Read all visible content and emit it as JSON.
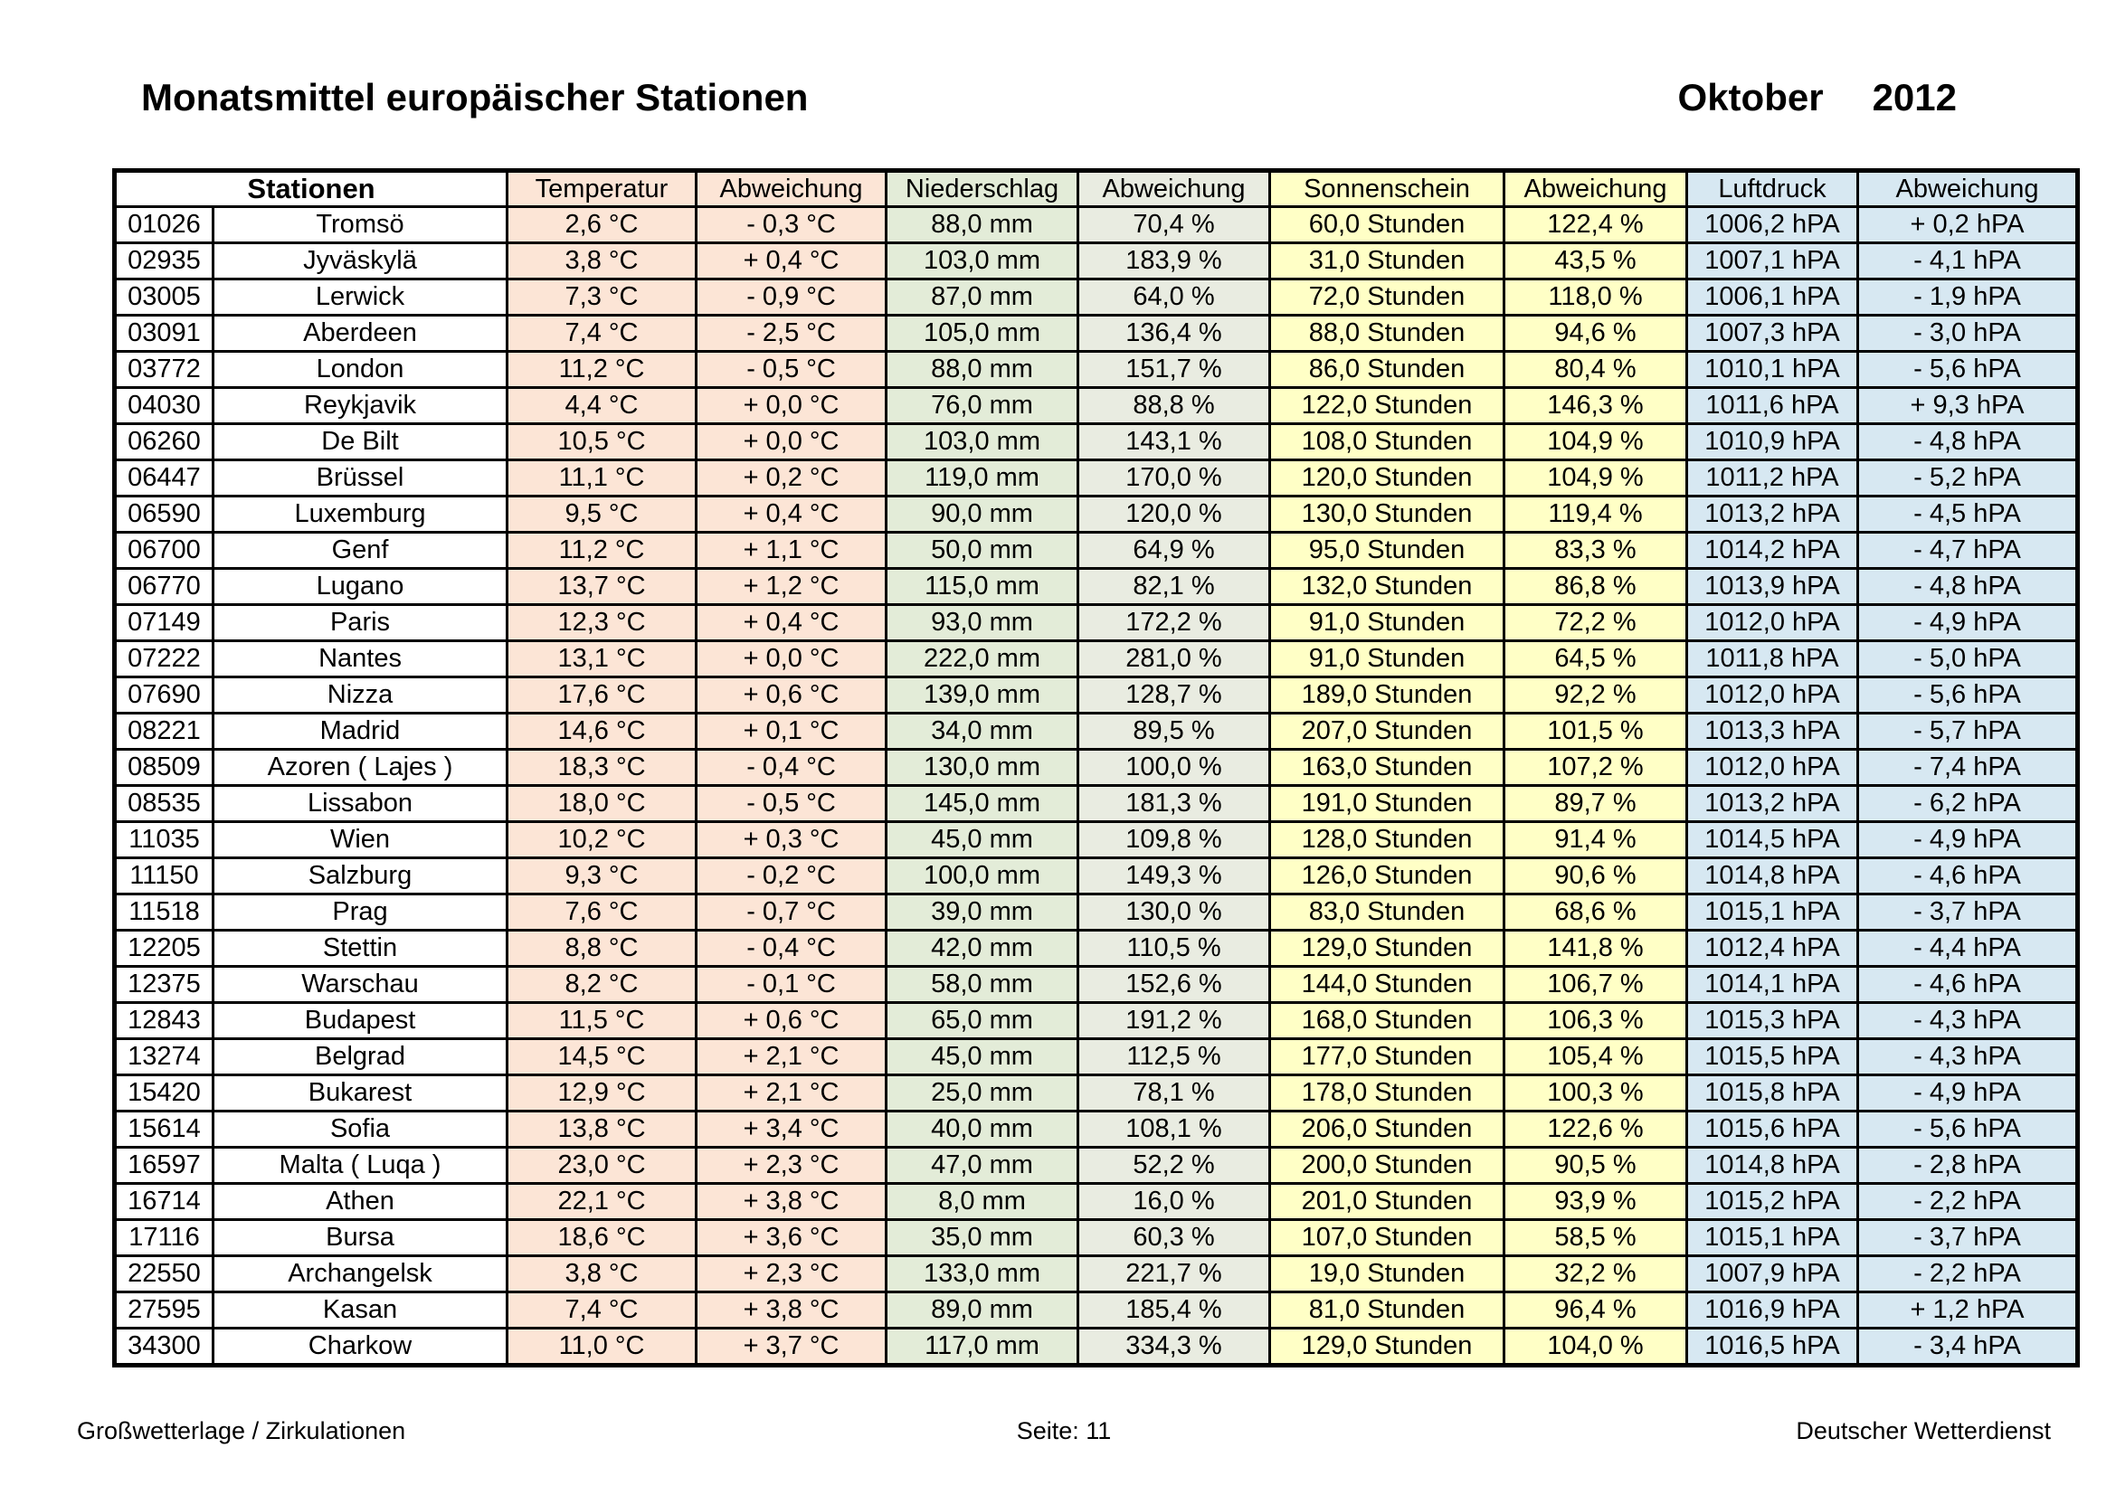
{
  "page": {
    "title": "Monatsmittel europäischer Stationen",
    "month": "Oktober",
    "year": "2012",
    "footer_left": "Großwetterlage / Zirkulationen",
    "footer_center": "Seite: 11",
    "footer_right": "Deutscher Wetterdienst"
  },
  "colors": {
    "temperature": "#fce5d6",
    "precipitation": "#e3ecd8",
    "precipitation_dev": "#e9ece1",
    "sunshine": "#ffffc6",
    "pressure": "#d7e8f2"
  },
  "table": {
    "header": {
      "stationen": "Stationen",
      "columns": [
        "Temperatur",
        "Abweichung",
        "Niederschlag",
        "Abweichung",
        "Sonnenschein",
        "Abweichung",
        "Luftdruck",
        "Abweichung"
      ]
    },
    "rows": [
      {
        "id": "01026",
        "name": "Tromsö",
        "temp": "2,6 °C",
        "temp_abw": "- 0,3 °C",
        "nied": "88,0 mm",
        "nied_abw": "70,4 %",
        "sonne": "60,0 Stunden",
        "sonne_abw": "122,4 %",
        "druck": "1006,2 hPA",
        "druck_abw": "+ 0,2 hPA"
      },
      {
        "id": "02935",
        "name": "Jyväskylä",
        "temp": "3,8 °C",
        "temp_abw": "+ 0,4 °C",
        "nied": "103,0 mm",
        "nied_abw": "183,9 %",
        "sonne": "31,0 Stunden",
        "sonne_abw": "43,5 %",
        "druck": "1007,1 hPA",
        "druck_abw": "- 4,1 hPA"
      },
      {
        "id": "03005",
        "name": "Lerwick",
        "temp": "7,3 °C",
        "temp_abw": "- 0,9 °C",
        "nied": "87,0 mm",
        "nied_abw": "64,0 %",
        "sonne": "72,0 Stunden",
        "sonne_abw": "118,0 %",
        "druck": "1006,1 hPA",
        "druck_abw": "- 1,9 hPA"
      },
      {
        "id": "03091",
        "name": "Aberdeen",
        "temp": "7,4 °C",
        "temp_abw": "- 2,5 °C",
        "nied": "105,0 mm",
        "nied_abw": "136,4 %",
        "sonne": "88,0 Stunden",
        "sonne_abw": "94,6 %",
        "druck": "1007,3 hPA",
        "druck_abw": "- 3,0 hPA"
      },
      {
        "id": "03772",
        "name": "London",
        "temp": "11,2 °C",
        "temp_abw": "- 0,5 °C",
        "nied": "88,0 mm",
        "nied_abw": "151,7 %",
        "sonne": "86,0 Stunden",
        "sonne_abw": "80,4 %",
        "druck": "1010,1 hPA",
        "druck_abw": "- 5,6 hPA"
      },
      {
        "id": "04030",
        "name": "Reykjavik",
        "temp": "4,4 °C",
        "temp_abw": "+ 0,0 °C",
        "nied": "76,0 mm",
        "nied_abw": "88,8 %",
        "sonne": "122,0 Stunden",
        "sonne_abw": "146,3 %",
        "druck": "1011,6 hPA",
        "druck_abw": "+ 9,3 hPA"
      },
      {
        "id": "06260",
        "name": "De Bilt",
        "temp": "10,5 °C",
        "temp_abw": "+ 0,0 °C",
        "nied": "103,0 mm",
        "nied_abw": "143,1 %",
        "sonne": "108,0 Stunden",
        "sonne_abw": "104,9 %",
        "druck": "1010,9 hPA",
        "druck_abw": "- 4,8 hPA"
      },
      {
        "id": "06447",
        "name": "Brüssel",
        "temp": "11,1 °C",
        "temp_abw": "+ 0,2 °C",
        "nied": "119,0 mm",
        "nied_abw": "170,0 %",
        "sonne": "120,0 Stunden",
        "sonne_abw": "104,9 %",
        "druck": "1011,2 hPA",
        "druck_abw": "- 5,2 hPA"
      },
      {
        "id": "06590",
        "name": "Luxemburg",
        "temp": "9,5 °C",
        "temp_abw": "+ 0,4 °C",
        "nied": "90,0 mm",
        "nied_abw": "120,0 %",
        "sonne": "130,0 Stunden",
        "sonne_abw": "119,4 %",
        "druck": "1013,2 hPA",
        "druck_abw": "- 4,5 hPA"
      },
      {
        "id": "06700",
        "name": "Genf",
        "temp": "11,2 °C",
        "temp_abw": "+ 1,1 °C",
        "nied": "50,0 mm",
        "nied_abw": "64,9 %",
        "sonne": "95,0 Stunden",
        "sonne_abw": "83,3 %",
        "druck": "1014,2 hPA",
        "druck_abw": "- 4,7 hPA"
      },
      {
        "id": "06770",
        "name": "Lugano",
        "temp": "13,7 °C",
        "temp_abw": "+ 1,2 °C",
        "nied": "115,0 mm",
        "nied_abw": "82,1 %",
        "sonne": "132,0 Stunden",
        "sonne_abw": "86,8 %",
        "druck": "1013,9 hPA",
        "druck_abw": "- 4,8 hPA"
      },
      {
        "id": "07149",
        "name": "Paris",
        "temp": "12,3 °C",
        "temp_abw": "+ 0,4 °C",
        "nied": "93,0 mm",
        "nied_abw": "172,2 %",
        "sonne": "91,0 Stunden",
        "sonne_abw": "72,2 %",
        "druck": "1012,0 hPA",
        "druck_abw": "- 4,9 hPA"
      },
      {
        "id": "07222",
        "name": "Nantes",
        "temp": "13,1 °C",
        "temp_abw": "+ 0,0 °C",
        "nied": "222,0 mm",
        "nied_abw": "281,0 %",
        "sonne": "91,0 Stunden",
        "sonne_abw": "64,5 %",
        "druck": "1011,8 hPA",
        "druck_abw": "- 5,0 hPA"
      },
      {
        "id": "07690",
        "name": "Nizza",
        "temp": "17,6 °C",
        "temp_abw": "+ 0,6 °C",
        "nied": "139,0 mm",
        "nied_abw": "128,7 %",
        "sonne": "189,0 Stunden",
        "sonne_abw": "92,2 %",
        "druck": "1012,0 hPA",
        "druck_abw": "- 5,6 hPA"
      },
      {
        "id": "08221",
        "name": "Madrid",
        "temp": "14,6 °C",
        "temp_abw": "+ 0,1 °C",
        "nied": "34,0 mm",
        "nied_abw": "89,5 %",
        "sonne": "207,0 Stunden",
        "sonne_abw": "101,5 %",
        "druck": "1013,3 hPA",
        "druck_abw": "- 5,7 hPA"
      },
      {
        "id": "08509",
        "name": "Azoren ( Lajes )",
        "temp": "18,3 °C",
        "temp_abw": "- 0,4 °C",
        "nied": "130,0 mm",
        "nied_abw": "100,0 %",
        "sonne": "163,0 Stunden",
        "sonne_abw": "107,2 %",
        "druck": "1012,0 hPA",
        "druck_abw": "- 7,4 hPA"
      },
      {
        "id": "08535",
        "name": "Lissabon",
        "temp": "18,0 °C",
        "temp_abw": "- 0,5 °C",
        "nied": "145,0 mm",
        "nied_abw": "181,3 %",
        "sonne": "191,0 Stunden",
        "sonne_abw": "89,7 %",
        "druck": "1013,2 hPA",
        "druck_abw": "- 6,2 hPA"
      },
      {
        "id": "11035",
        "name": "Wien",
        "temp": "10,2 °C",
        "temp_abw": "+ 0,3 °C",
        "nied": "45,0 mm",
        "nied_abw": "109,8 %",
        "sonne": "128,0 Stunden",
        "sonne_abw": "91,4 %",
        "druck": "1014,5 hPA",
        "druck_abw": "- 4,9 hPA"
      },
      {
        "id": "11150",
        "name": "Salzburg",
        "temp": "9,3 °C",
        "temp_abw": "- 0,2 °C",
        "nied": "100,0 mm",
        "nied_abw": "149,3 %",
        "sonne": "126,0 Stunden",
        "sonne_abw": "90,6 %",
        "druck": "1014,8 hPA",
        "druck_abw": "- 4,6 hPA"
      },
      {
        "id": "11518",
        "name": "Prag",
        "temp": "7,6 °C",
        "temp_abw": "- 0,7 °C",
        "nied": "39,0 mm",
        "nied_abw": "130,0 %",
        "sonne": "83,0 Stunden",
        "sonne_abw": "68,6 %",
        "druck": "1015,1 hPA",
        "druck_abw": "- 3,7 hPA"
      },
      {
        "id": "12205",
        "name": "Stettin",
        "temp": "8,8 °C",
        "temp_abw": "- 0,4 °C",
        "nied": "42,0 mm",
        "nied_abw": "110,5 %",
        "sonne": "129,0 Stunden",
        "sonne_abw": "141,8 %",
        "druck": "1012,4 hPA",
        "druck_abw": "- 4,4 hPA"
      },
      {
        "id": "12375",
        "name": "Warschau",
        "temp": "8,2 °C",
        "temp_abw": "- 0,1 °C",
        "nied": "58,0 mm",
        "nied_abw": "152,6 %",
        "sonne": "144,0 Stunden",
        "sonne_abw": "106,7 %",
        "druck": "1014,1 hPA",
        "druck_abw": "- 4,6 hPA"
      },
      {
        "id": "12843",
        "name": "Budapest",
        "temp": "11,5 °C",
        "temp_abw": "+ 0,6 °C",
        "nied": "65,0 mm",
        "nied_abw": "191,2 %",
        "sonne": "168,0 Stunden",
        "sonne_abw": "106,3 %",
        "druck": "1015,3 hPA",
        "druck_abw": "- 4,3 hPA"
      },
      {
        "id": "13274",
        "name": "Belgrad",
        "temp": "14,5 °C",
        "temp_abw": "+ 2,1 °C",
        "nied": "45,0 mm",
        "nied_abw": "112,5 %",
        "sonne": "177,0 Stunden",
        "sonne_abw": "105,4 %",
        "druck": "1015,5 hPA",
        "druck_abw": "- 4,3 hPA"
      },
      {
        "id": "15420",
        "name": "Bukarest",
        "temp": "12,9 °C",
        "temp_abw": "+ 2,1 °C",
        "nied": "25,0 mm",
        "nied_abw": "78,1 %",
        "sonne": "178,0 Stunden",
        "sonne_abw": "100,3 %",
        "druck": "1015,8 hPA",
        "druck_abw": "- 4,9 hPA"
      },
      {
        "id": "15614",
        "name": "Sofia",
        "temp": "13,8 °C",
        "temp_abw": "+ 3,4 °C",
        "nied": "40,0 mm",
        "nied_abw": "108,1 %",
        "sonne": "206,0 Stunden",
        "sonne_abw": "122,6 %",
        "druck": "1015,6 hPA",
        "druck_abw": "- 5,6 hPA"
      },
      {
        "id": "16597",
        "name": "Malta ( Luqa )",
        "temp": "23,0 °C",
        "temp_abw": "+ 2,3 °C",
        "nied": "47,0 mm",
        "nied_abw": "52,2 %",
        "sonne": "200,0 Stunden",
        "sonne_abw": "90,5 %",
        "druck": "1014,8 hPA",
        "druck_abw": "- 2,8 hPA"
      },
      {
        "id": "16714",
        "name": "Athen",
        "temp": "22,1 °C",
        "temp_abw": "+ 3,8 °C",
        "nied": "8,0 mm",
        "nied_abw": "16,0 %",
        "sonne": "201,0 Stunden",
        "sonne_abw": "93,9 %",
        "druck": "1015,2 hPA",
        "druck_abw": "- 2,2 hPA"
      },
      {
        "id": "17116",
        "name": "Bursa",
        "temp": "18,6 °C",
        "temp_abw": "+ 3,6 °C",
        "nied": "35,0 mm",
        "nied_abw": "60,3 %",
        "sonne": "107,0 Stunden",
        "sonne_abw": "58,5 %",
        "druck": "1015,1 hPA",
        "druck_abw": "- 3,7 hPA"
      },
      {
        "id": "22550",
        "name": "Archangelsk",
        "temp": "3,8 °C",
        "temp_abw": "+ 2,3 °C",
        "nied": "133,0 mm",
        "nied_abw": "221,7 %",
        "sonne": "19,0 Stunden",
        "sonne_abw": "32,2 %",
        "druck": "1007,9 hPA",
        "druck_abw": "- 2,2 hPA"
      },
      {
        "id": "27595",
        "name": "Kasan",
        "temp": "7,4 °C",
        "temp_abw": "+ 3,8 °C",
        "nied": "89,0 mm",
        "nied_abw": "185,4 %",
        "sonne": "81,0 Stunden",
        "sonne_abw": "96,4 %",
        "druck": "1016,9 hPA",
        "druck_abw": "+ 1,2 hPA"
      },
      {
        "id": "34300",
        "name": "Charkow",
        "temp": "11,0 °C",
        "temp_abw": "+ 3,7 °C",
        "nied": "117,0 mm",
        "nied_abw": "334,3 %",
        "sonne": "129,0 Stunden",
        "sonne_abw": "104,0 %",
        "druck": "1016,5 hPA",
        "druck_abw": "- 3,4 hPA"
      }
    ]
  }
}
